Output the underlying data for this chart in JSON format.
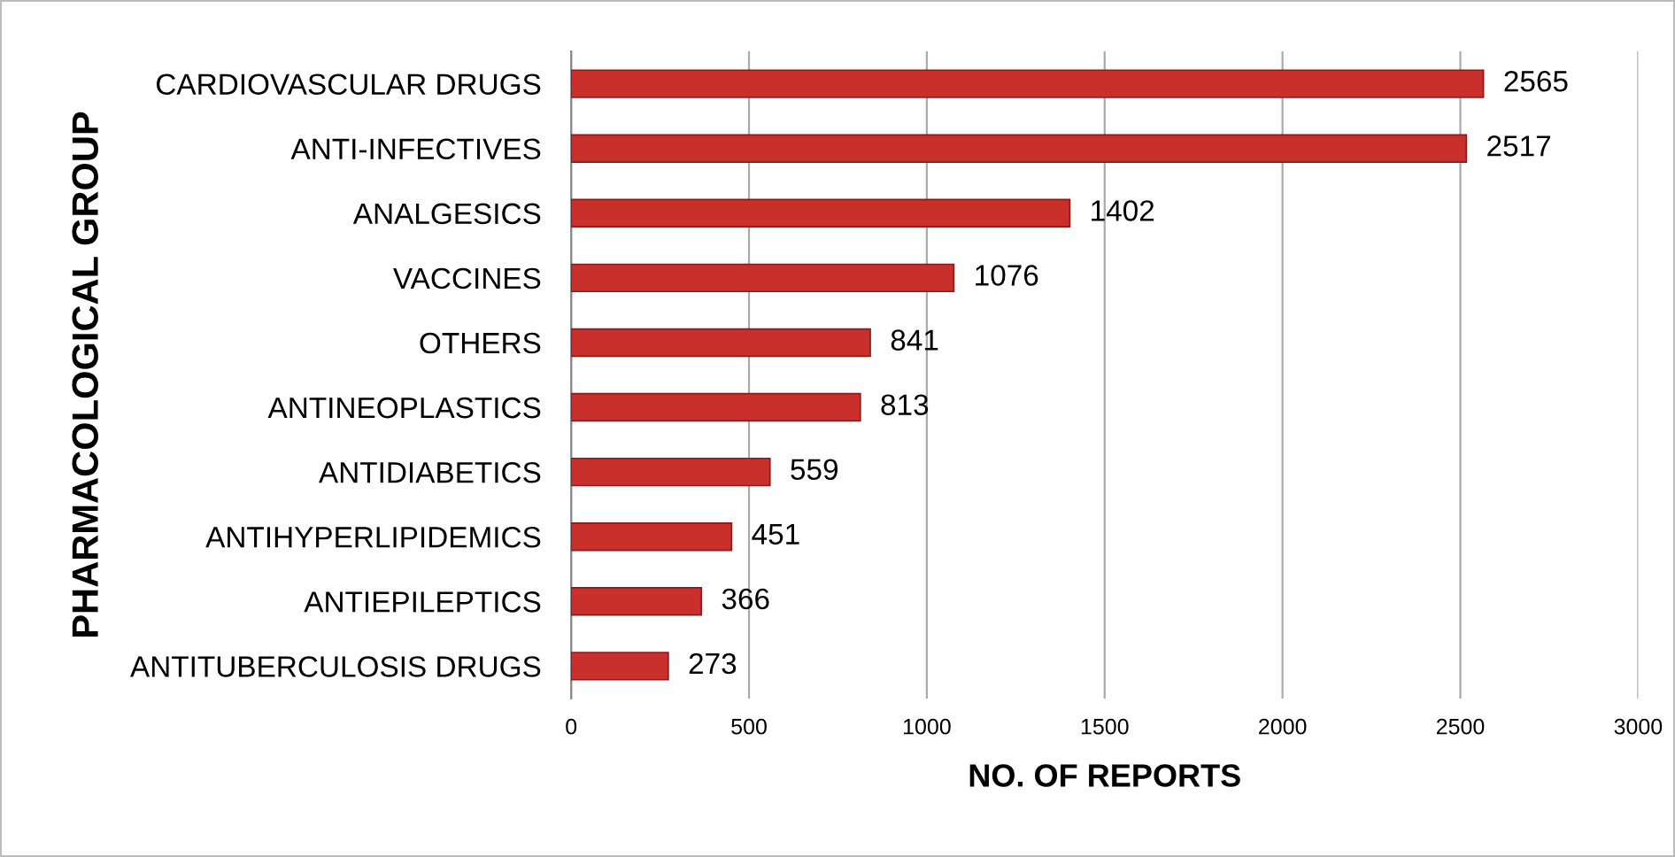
{
  "chart_data": {
    "type": "bar",
    "orientation": "horizontal",
    "xlabel": "NO. OF REPORTS",
    "ylabel": "PHARMACOLOGICAL GROUP",
    "categories": [
      "CARDIOVASCULAR DRUGS",
      "ANTI-INFECTIVES",
      "ANALGESICS",
      "VACCINES",
      "OTHERS",
      "ANTINEOPLASTICS",
      "ANTIDIABETICS",
      "ANTIHYPERLIPIDEMICS",
      "ANTIEPILEPTICS",
      "ANTITUBERCULOSIS DRUGS"
    ],
    "values": [
      2565,
      2517,
      1402,
      1076,
      841,
      813,
      559,
      451,
      366,
      273
    ],
    "color": "#c9302c",
    "xlim": [
      0,
      3000
    ],
    "xticks": [
      0,
      500,
      1000,
      1500,
      2000,
      2500,
      3000
    ],
    "grid": "x",
    "data_labels": true
  }
}
